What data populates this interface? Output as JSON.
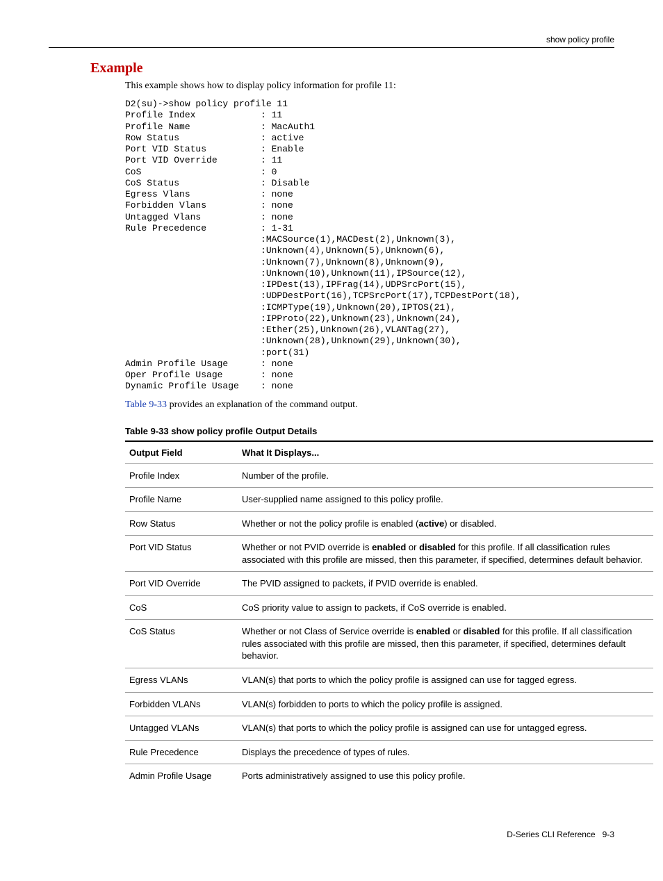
{
  "header": {
    "breadcrumb": "show policy profile"
  },
  "section": {
    "heading": "Example",
    "intro": "This example shows how to display policy information for profile 11:",
    "post_code_prefix_link": "Table 9-33",
    "post_code_rest": " provides an explanation of the command output."
  },
  "code": "D2(su)->show policy profile 11\nProfile Index            : 11\nProfile Name             : MacAuth1\nRow Status               : active\nPort VID Status          : Enable\nPort VID Override        : 11\nCoS                      : 0\nCoS Status               : Disable\nEgress Vlans             : none\nForbidden Vlans          : none\nUntagged Vlans           : none\nRule Precedence          : 1-31\n                         :MACSource(1),MACDest(2),Unknown(3),\n                         :Unknown(4),Unknown(5),Unknown(6),\n                         :Unknown(7),Unknown(8),Unknown(9),\n                         :Unknown(10),Unknown(11),IPSource(12),\n                         :IPDest(13),IPFrag(14),UDPSrcPort(15),\n                         :UDPDestPort(16),TCPSrcPort(17),TCPDestPort(18),\n                         :ICMPType(19),Unknown(20),IPTOS(21),\n                         :IPProto(22),Unknown(23),Unknown(24),\n                         :Ether(25),Unknown(26),VLANTag(27),\n                         :Unknown(28),Unknown(29),Unknown(30),\n                         :port(31)\nAdmin Profile Usage      : none\nOper Profile Usage       : none\nDynamic Profile Usage    : none",
  "table": {
    "caption": "Table 9-33   show policy profile Output Details",
    "columns": [
      "Output Field",
      "What It Displays..."
    ],
    "rows": [
      {
        "field": "Profile Index",
        "desc": "Number of the profile."
      },
      {
        "field": "Profile Name",
        "desc": "User-supplied name assigned to this policy profile."
      },
      {
        "field": "Row Status",
        "desc": "Whether or not the policy profile is enabled (<b>active</b>) or disabled."
      },
      {
        "field": "Port VID Status",
        "desc": "Whether or not PVID override is <b>enabled</b> or <b>disabled</b> for this profile. If all classification rules associated with this profile are missed, then this parameter, if specified, determines default behavior."
      },
      {
        "field": "Port VID Override",
        "desc": "The PVID assigned to packets, if PVID override is enabled."
      },
      {
        "field": "CoS",
        "desc": "CoS priority value to assign to packets, if CoS override is enabled."
      },
      {
        "field": "CoS Status",
        "desc": "Whether or not Class of Service override is <b>enabled</b> or <b>disabled</b> for this profile. If all classification rules associated with this profile are missed, then this parameter, if specified, determines default behavior."
      },
      {
        "field": "Egress VLANs",
        "desc": "VLAN(s) that ports to which the policy profile is assigned can use for tagged egress."
      },
      {
        "field": "Forbidden VLANs",
        "desc": "VLAN(s) forbidden to ports to which the policy profile is assigned."
      },
      {
        "field": "Untagged VLANs",
        "desc": "VLAN(s) that ports to which the policy profile is assigned can use for untagged egress."
      },
      {
        "field": "Rule Precedence",
        "desc": "Displays the precedence of types of rules."
      },
      {
        "field": "Admin Profile Usage",
        "desc": "Ports administratively assigned to use this policy profile."
      }
    ]
  },
  "footer": {
    "left": "D-Series CLI Reference",
    "page": "9-3"
  }
}
